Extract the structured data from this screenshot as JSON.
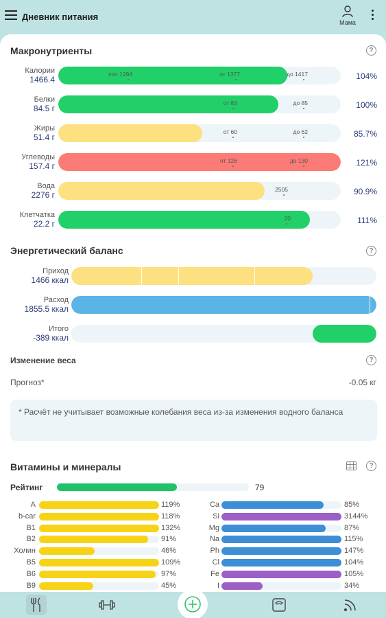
{
  "header": {
    "title": "Дневник питания",
    "profile_label": "Мама"
  },
  "macros": {
    "title": "Макронутриенты",
    "rows": [
      {
        "name": "Калории",
        "value": "1466.4",
        "percent": "104%",
        "fill": 0.81,
        "color": "green",
        "marks": [
          {
            "label": "min 1294",
            "pos": 0.27
          },
          {
            "label": "от 1377",
            "pos": 0.65
          },
          {
            "label": "до 1417",
            "pos": 0.89
          }
        ]
      },
      {
        "name": "Белки",
        "value": "84.5 г",
        "percent": "100%",
        "fill": 0.78,
        "color": "green",
        "marks": [
          {
            "label": "от 83",
            "pos": 0.64
          },
          {
            "label": "до 85",
            "pos": 0.89
          }
        ]
      },
      {
        "name": "Жиры",
        "value": "51.4 г",
        "percent": "85.7%",
        "fill": 0.51,
        "color": "yellow",
        "marks": [
          {
            "label": "от 60",
            "pos": 0.64
          },
          {
            "label": "до 62",
            "pos": 0.89
          }
        ]
      },
      {
        "name": "Углеводы",
        "value": "157.4 г",
        "percent": "121%",
        "fill": 1.0,
        "color": "red",
        "marks": [
          {
            "label": "от 126",
            "pos": 0.64
          },
          {
            "label": "до 130",
            "pos": 0.89
          }
        ]
      },
      {
        "name": "Вода",
        "value": "2276 г",
        "percent": "90.9%",
        "fill": 0.73,
        "color": "yellow",
        "marks": [
          {
            "label": "2505",
            "pos": 0.82
          }
        ]
      },
      {
        "name": "Клетчатка",
        "value": "22.2 г",
        "percent": "111%",
        "fill": 0.89,
        "color": "green",
        "marks": [
          {
            "label": "20",
            "pos": 0.83
          }
        ]
      }
    ]
  },
  "energy": {
    "title": "Энергетический баланс",
    "rows": [
      {
        "name": "Приход",
        "value": "1466 ккал",
        "color": "yellow",
        "fill_start": 0.0,
        "fill_end": 0.79
      },
      {
        "name": "Расход",
        "value": "1855.5 ккал",
        "color": "blue",
        "fill_start": 0.0,
        "fill_end": 1.0
      },
      {
        "name": "Итого",
        "value": "-389 ккал",
        "color": "green",
        "fill_start": 0.79,
        "fill_end": 1.0
      }
    ]
  },
  "weight": {
    "title": "Изменение веса",
    "forecast_label": "Прогноз*",
    "forecast_value": "-0.05 кг",
    "note": "* Расчёт не учитывает возможные колебания веса из-за изменения водного баланса"
  },
  "vitamins": {
    "title": "Витамины и минералы",
    "rating_label": "Рейтинг",
    "rating_value": "79",
    "rating_fill": 0.79,
    "left": [
      {
        "name": "A",
        "percent": "119%",
        "fill": 1.0,
        "color": "yellow"
      },
      {
        "name": "b-car",
        "percent": "118%",
        "fill": 1.0,
        "color": "yellow"
      },
      {
        "name": "B1",
        "percent": "132%",
        "fill": 1.0,
        "color": "yellow"
      },
      {
        "name": "B2",
        "percent": "91%",
        "fill": 0.91,
        "color": "yellow"
      },
      {
        "name": "Холин",
        "percent": "46%",
        "fill": 0.46,
        "color": "yellow"
      },
      {
        "name": "B5",
        "percent": "109%",
        "fill": 1.0,
        "color": "yellow"
      },
      {
        "name": "B6",
        "percent": "97%",
        "fill": 0.97,
        "color": "yellow"
      },
      {
        "name": "B9",
        "percent": "45%",
        "fill": 0.45,
        "color": "yellow"
      }
    ],
    "right": [
      {
        "name": "Ca",
        "percent": "85%",
        "fill": 0.85,
        "color": "blue"
      },
      {
        "name": "Si",
        "percent": "3144%",
        "fill": 1.0,
        "color": "purple"
      },
      {
        "name": "Mg",
        "percent": "87%",
        "fill": 0.87,
        "color": "blue"
      },
      {
        "name": "Na",
        "percent": "115%",
        "fill": 1.0,
        "color": "blue"
      },
      {
        "name": "Ph",
        "percent": "147%",
        "fill": 1.0,
        "color": "blue"
      },
      {
        "name": "Cl",
        "percent": "104%",
        "fill": 1.0,
        "color": "blue"
      },
      {
        "name": "Fe",
        "percent": "105%",
        "fill": 1.0,
        "color": "purple"
      },
      {
        "name": "I",
        "percent": "34%",
        "fill": 0.34,
        "color": "purple"
      }
    ]
  },
  "nav": {
    "items": [
      {
        "icon": "fork-knife-icon",
        "active": true
      },
      {
        "icon": "dumbbell-icon",
        "active": false
      },
      {
        "icon": "plus-icon",
        "active": false
      },
      {
        "icon": "scale-icon",
        "active": false
      },
      {
        "icon": "rss-icon",
        "active": false
      }
    ]
  }
}
